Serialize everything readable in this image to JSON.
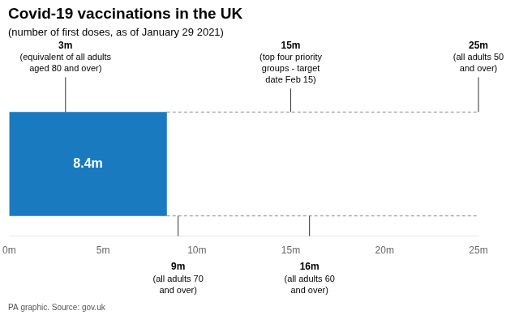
{
  "chart_data": {
    "type": "bar",
    "orientation": "horizontal",
    "title": "Covid-19 vaccinations in the UK",
    "subtitle": "(number of first doses, as of January 29 2021)",
    "footer": "PA graphic. Source: gov.uk",
    "categories": [
      null
    ],
    "values": [
      8.4
    ],
    "value_labels": [
      "8.4m"
    ],
    "data_labels": true,
    "color": "#1a7abf",
    "xlim": [
      0,
      25
    ],
    "xticks": [
      {
        "value": 0,
        "label": "0m"
      },
      {
        "value": 5,
        "label": "5m"
      },
      {
        "value": 10,
        "label": "10m"
      },
      {
        "value": 15,
        "label": "15m"
      },
      {
        "value": 20,
        "label": "20m"
      },
      {
        "value": 25,
        "label": "25m"
      }
    ],
    "tick_labels": "x",
    "grid": false,
    "annotations_above": [
      {
        "x": 3,
        "label": "3m",
        "text": "(equivalent of all adults\naged 80 and over)"
      },
      {
        "x": 15,
        "label": "15m",
        "text": "(top four priority\ngroups - target\ndate Feb 15)"
      },
      {
        "x": 25,
        "label": "25m",
        "text": "(all adults 50\nand over)"
      }
    ],
    "annotations_below": [
      {
        "x": 9,
        "label": "9m",
        "text": "(all adults 70\nand over)"
      },
      {
        "x": 16,
        "label": "16m",
        "text": "(all adults 60\nand over)"
      }
    ]
  }
}
